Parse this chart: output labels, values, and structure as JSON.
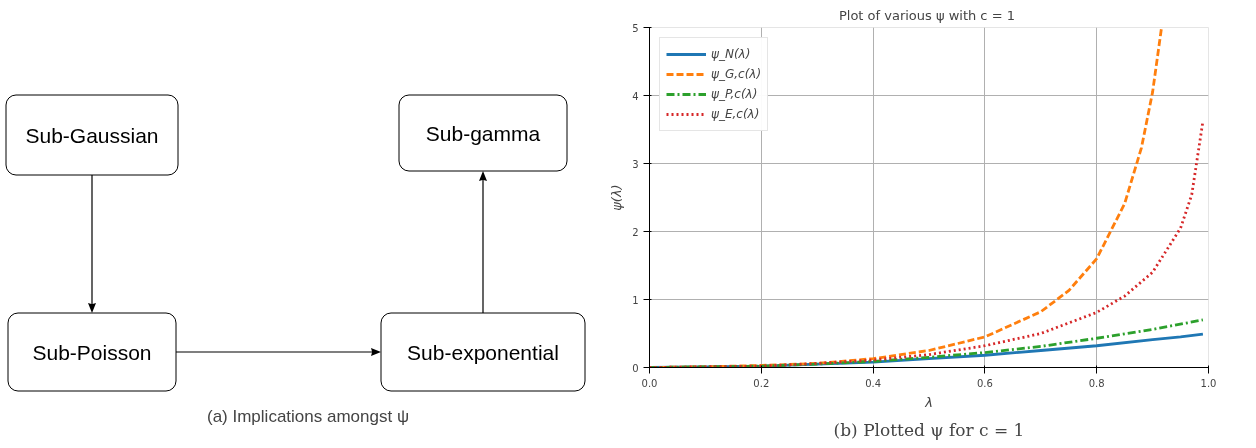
{
  "chart_data": [
    {
      "type": "other",
      "annotations": [
        "Sub-Gaussian",
        "Sub-gamma",
        "Sub-Poisson",
        "Sub-exponential",
        "(a) Implications amongst ψ"
      ]
    },
    {
      "type": "line",
      "title": "Plot of various ψ  with c = 1",
      "xlabel": "λ",
      "ylabel": "ψ(λ)",
      "series": [
        {
          "name": "ψ_N(λ)",
          "color": "#1f77b4",
          "line_style": "solid",
          "x": [
            0,
            0.1,
            0.2,
            0.3,
            0.4,
            0.5,
            0.6,
            0.7,
            0.8,
            0.9,
            0.95,
            0.99
          ],
          "values": [
            0,
            0.01,
            0.02,
            0.05,
            0.08,
            0.13,
            0.18,
            0.25,
            0.32,
            0.41,
            0.45,
            0.49
          ]
        },
        {
          "name": "ψ_G,c(λ)",
          "color": "#ff7f0e",
          "line_style": "dashed",
          "x": [
            0,
            0.1,
            0.2,
            0.3,
            0.4,
            0.5,
            0.6,
            0.7,
            0.75,
            0.8,
            0.85,
            0.88,
            0.9,
            0.916
          ],
          "values": [
            0,
            0.01,
            0.03,
            0.06,
            0.13,
            0.25,
            0.45,
            0.82,
            1.13,
            1.6,
            2.41,
            3.23,
            4.05,
            5
          ]
        },
        {
          "name": "ψ_P,c(λ)",
          "color": "#2ca02c",
          "line_style": "dashdot",
          "x": [
            0,
            0.1,
            0.2,
            0.3,
            0.4,
            0.5,
            0.6,
            0.7,
            0.8,
            0.9,
            0.99
          ],
          "values": [
            0,
            0.01,
            0.02,
            0.05,
            0.09,
            0.15,
            0.22,
            0.31,
            0.43,
            0.56,
            0.7
          ]
        },
        {
          "name": "ψ_E,c(λ)",
          "color": "#d62728",
          "line_style": "dotted",
          "x": [
            0,
            0.1,
            0.2,
            0.3,
            0.4,
            0.5,
            0.6,
            0.7,
            0.8,
            0.85,
            0.9,
            0.95,
            0.97,
            0.99
          ],
          "values": [
            0,
            0.01,
            0.02,
            0.06,
            0.11,
            0.19,
            0.32,
            0.5,
            0.81,
            1.05,
            1.4,
            2.05,
            2.54,
            3.62
          ]
        }
      ],
      "xlim": [
        0,
        1
      ],
      "ylim": [
        0,
        5
      ],
      "xticks": [
        {
          "value": 0,
          "label": "0.0"
        },
        0.2,
        0.4,
        0.6,
        0.8,
        {
          "value": 1,
          "label": "1.0"
        }
      ],
      "yticks": [
        0,
        1,
        2,
        3,
        4,
        5
      ],
      "grid": true,
      "legend": "top left",
      "annotations": [
        "(b) Plotted ψ for c = 1"
      ]
    }
  ]
}
